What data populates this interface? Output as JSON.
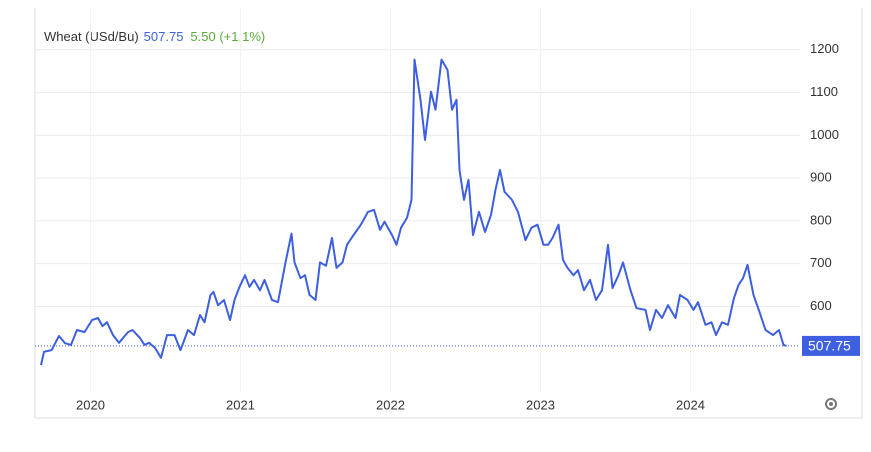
{
  "chart_data": {
    "type": "line",
    "title": "Wheat (USd/Bu)",
    "last_price": 507.75,
    "change": "5.50 (+1.1%)",
    "xlim": [
      2019.63,
      2024.73
    ],
    "xticks": [
      2020,
      2021,
      2022,
      2023,
      2024
    ],
    "ylim": [
      400,
      1300
    ],
    "yticks": [
      600,
      700,
      800,
      900,
      1000,
      1100,
      1200
    ],
    "grid": true,
    "series": [
      {
        "name": "Wheat",
        "color": "#3d5fe0",
        "x": [
          2019.67,
          2019.69,
          2019.74,
          2019.79,
          2019.83,
          2019.87,
          2019.91,
          2019.96,
          2020.01,
          2020.05,
          2020.08,
          2020.11,
          2020.15,
          2020.19,
          2020.25,
          2020.28,
          2020.33,
          2020.36,
          2020.39,
          2020.43,
          2020.47,
          2020.51,
          2020.56,
          2020.6,
          2020.65,
          2020.69,
          2020.73,
          2020.76,
          2020.8,
          2020.82,
          2020.85,
          2020.89,
          2020.93,
          2020.96,
          2020.99,
          2021.03,
          2021.06,
          2021.09,
          2021.13,
          2021.16,
          2021.21,
          2021.25,
          2021.3,
          2021.34,
          2021.36,
          2021.4,
          2021.43,
          2021.46,
          2021.5,
          2021.53,
          2021.57,
          2021.61,
          2021.64,
          2021.68,
          2021.71,
          2021.74,
          2021.8,
          2021.85,
          2021.89,
          2021.93,
          2021.96,
          2022.01,
          2022.04,
          2022.07,
          2022.11,
          2022.14,
          2022.16,
          2022.2,
          2022.23,
          2022.27,
          2022.3,
          2022.34,
          2022.38,
          2022.41,
          2022.44,
          2022.46,
          2022.49,
          2022.52,
          2022.55,
          2022.59,
          2022.63,
          2022.67,
          2022.7,
          2022.73,
          2022.76,
          2022.81,
          2022.85,
          2022.9,
          2022.94,
          2022.98,
          2023.02,
          2023.05,
          2023.08,
          2023.12,
          2023.15,
          2023.18,
          2023.22,
          2023.25,
          2023.29,
          2023.33,
          2023.37,
          2023.41,
          2023.45,
          2023.48,
          2023.52,
          2023.55,
          2023.6,
          2023.64,
          2023.7,
          2023.73,
          2023.77,
          2023.81,
          2023.85,
          2023.9,
          2023.93,
          2023.98,
          2024.02,
          2024.05,
          2024.1,
          2024.14,
          2024.17,
          2024.21,
          2024.25,
          2024.29,
          2024.32,
          2024.35,
          2024.38,
          2024.42,
          2024.46,
          2024.5,
          2024.55,
          2024.59,
          2024.62,
          2024.64
        ],
        "values": [
          463,
          494,
          498,
          531,
          514,
          510,
          545,
          540,
          568,
          573,
          554,
          563,
          533,
          515,
          540,
          545,
          526,
          510,
          515,
          503,
          480,
          533,
          533,
          498,
          545,
          533,
          580,
          563,
          627,
          634,
          603,
          615,
          568,
          615,
          643,
          673,
          646,
          662,
          638,
          662,
          615,
          610,
          703,
          770,
          703,
          666,
          673,
          627,
          615,
          703,
          695,
          760,
          690,
          703,
          744,
          760,
          790,
          821,
          826,
          779,
          798,
          767,
          744,
          784,
          807,
          849,
          1177,
          1083,
          989,
          1102,
          1060,
          1177,
          1153,
          1060,
          1083,
          919,
          849,
          896,
          767,
          821,
          774,
          814,
          873,
          919,
          868,
          849,
          821,
          755,
          784,
          791,
          744,
          744,
          760,
          791,
          709,
          690,
          673,
          685,
          638,
          662,
          615,
          638,
          744,
          643,
          673,
          703,
          638,
          596,
          592,
          545,
          592,
          573,
          603,
          573,
          627,
          615,
          592,
          610,
          557,
          563,
          533,
          563,
          557,
          620,
          650,
          666,
          697,
          627,
          587,
          545,
          533,
          545,
          510,
          507.75
        ]
      }
    ]
  }
}
